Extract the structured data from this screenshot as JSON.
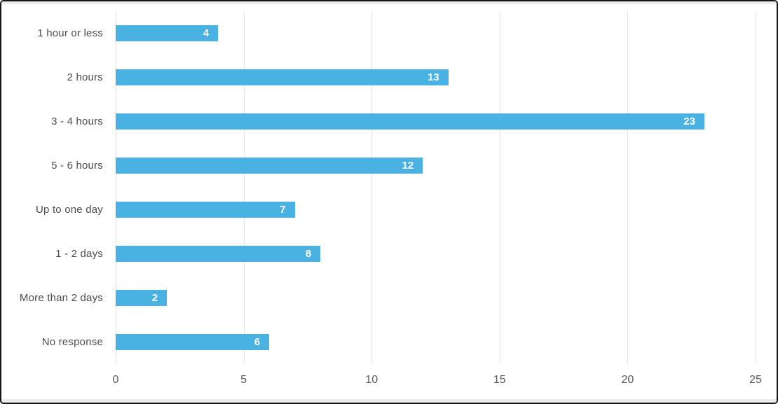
{
  "chart_data": {
    "type": "bar",
    "orientation": "horizontal",
    "title": "",
    "xlabel": "",
    "ylabel": "",
    "categories": [
      "1 hour or less",
      "2 hours",
      "3 - 4 hours",
      "5 - 6 hours",
      "Up to one day",
      "1 - 2 days",
      "More than 2 days",
      "No response"
    ],
    "values": [
      4,
      13,
      23,
      12,
      7,
      8,
      2,
      6
    ],
    "xlim": [
      0,
      25
    ],
    "xticks": [
      0,
      5,
      10,
      15,
      20,
      25
    ],
    "grid": "vertical-only",
    "legend": "none",
    "value_labels_position": "inside-end",
    "bar_color": "#4AB1E3",
    "value_label_color": "#ffffff",
    "category_label_color": "#4d4d4d",
    "tick_label_color": "#595959",
    "gridline_color": "#e2e2e2",
    "frame_border_color": "#161616",
    "edge_strip_color": "#ececec"
  }
}
